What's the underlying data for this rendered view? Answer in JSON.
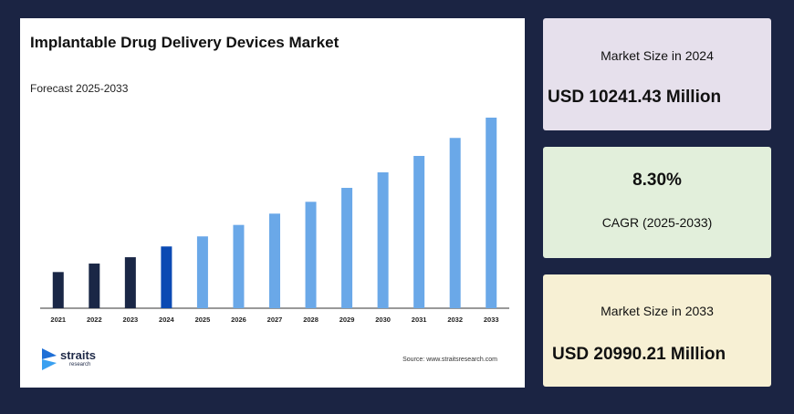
{
  "chart_data": {
    "type": "bar",
    "title": "Implantable Drug Delivery Devices Market",
    "subtitle": "Forecast 2025-2033",
    "categories": [
      "2021",
      "2022",
      "2023",
      "2024",
      "2025",
      "2026",
      "2027",
      "2028",
      "2029",
      "2030",
      "2031",
      "2032",
      "2033"
    ],
    "values": [
      20.5,
      25.3,
      28.9,
      35.0,
      40.7,
      47.2,
      53.6,
      60.3,
      68.2,
      77.0,
      86.3,
      96.5,
      108.0
    ],
    "value_unit": "relative bar height (no value axis shown)",
    "colors": [
      "#1a2746",
      "#1a2746",
      "#1a2746",
      "#0b4ab3",
      "#6aa8e8",
      "#6aa8e8",
      "#6aa8e8",
      "#6aa8e8",
      "#6aa8e8",
      "#6aa8e8",
      "#6aa8e8",
      "#6aa8e8",
      "#6aa8e8"
    ],
    "grid": false,
    "legend": "none"
  },
  "logo": {
    "name": "straits",
    "sub": "research"
  },
  "source": "Source: www.straitsresearch.com",
  "stats": {
    "size_2024_label": "Market Size in 2024",
    "size_2024_value": "USD 10241.43 Million",
    "cagr_value": "8.30%",
    "cagr_label": "CAGR (2025-2033)",
    "size_2033_label": "Market Size in 2033",
    "size_2033_value": "USD 20990.21 Million"
  },
  "colors": {
    "background": "#1b2443",
    "card_2024": "#e6e0ec",
    "card_cagr": "#e2efdb",
    "card_2033": "#f7f0d4"
  }
}
